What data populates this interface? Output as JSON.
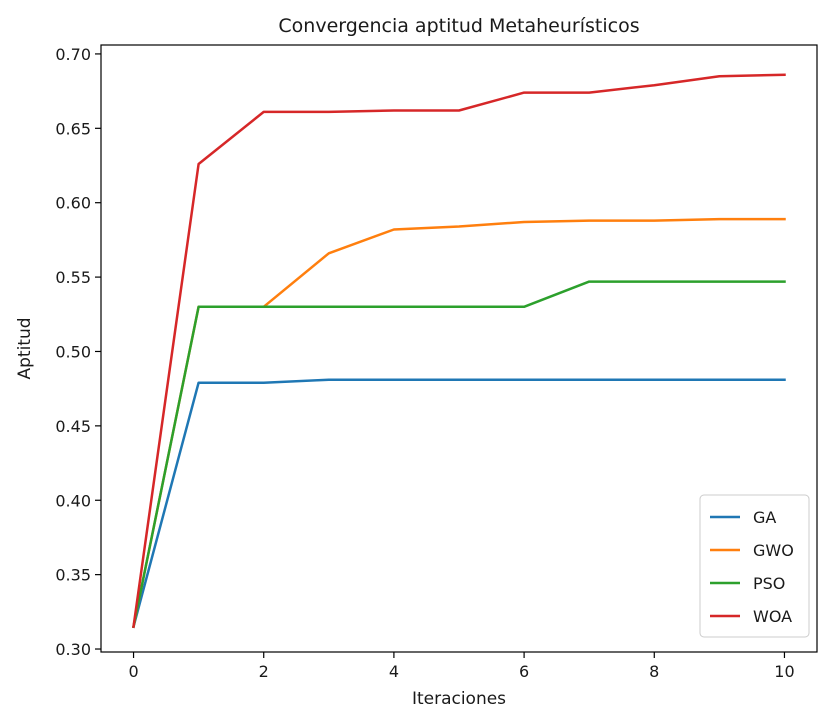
{
  "chart_data": {
    "type": "line",
    "title": "Convergencia aptitud Metaheurísticos",
    "xlabel": "Iteraciones",
    "ylabel": "Aptitud",
    "xlim": [
      -0.5,
      10.5
    ],
    "ylim": [
      0.298,
      0.706
    ],
    "xticks": [
      0,
      2,
      4,
      6,
      8,
      10
    ],
    "xtick_labels": [
      "0",
      "2",
      "4",
      "6",
      "8",
      "10"
    ],
    "yticks": [
      0.3,
      0.35,
      0.4,
      0.45,
      0.5,
      0.55,
      0.6,
      0.65,
      0.7
    ],
    "ytick_labels": [
      "0.30",
      "0.35",
      "0.40",
      "0.45",
      "0.50",
      "0.55",
      "0.60",
      "0.65",
      "0.70"
    ],
    "grid": false,
    "legend_position": "lower-right",
    "x": [
      0,
      1,
      2,
      3,
      4,
      5,
      6,
      7,
      8,
      9,
      10
    ],
    "series": [
      {
        "name": "GA",
        "color": "#1f77b4",
        "values": [
          0.315,
          0.479,
          0.479,
          0.481,
          0.481,
          0.481,
          0.481,
          0.481,
          0.481,
          0.481,
          0.481
        ]
      },
      {
        "name": "GWO",
        "color": "#ff7f0e",
        "values": [
          0.315,
          0.53,
          0.53,
          0.566,
          0.582,
          0.584,
          0.587,
          0.588,
          0.588,
          0.589,
          0.589
        ]
      },
      {
        "name": "PSO",
        "color": "#2ca02c",
        "values": [
          0.315,
          0.53,
          0.53,
          0.53,
          0.53,
          0.53,
          0.53,
          0.547,
          0.547,
          0.547,
          0.547
        ]
      },
      {
        "name": "WOA",
        "color": "#d62728",
        "values": [
          0.315,
          0.626,
          0.661,
          0.661,
          0.662,
          0.662,
          0.674,
          0.674,
          0.679,
          0.685,
          0.686
        ]
      }
    ]
  }
}
